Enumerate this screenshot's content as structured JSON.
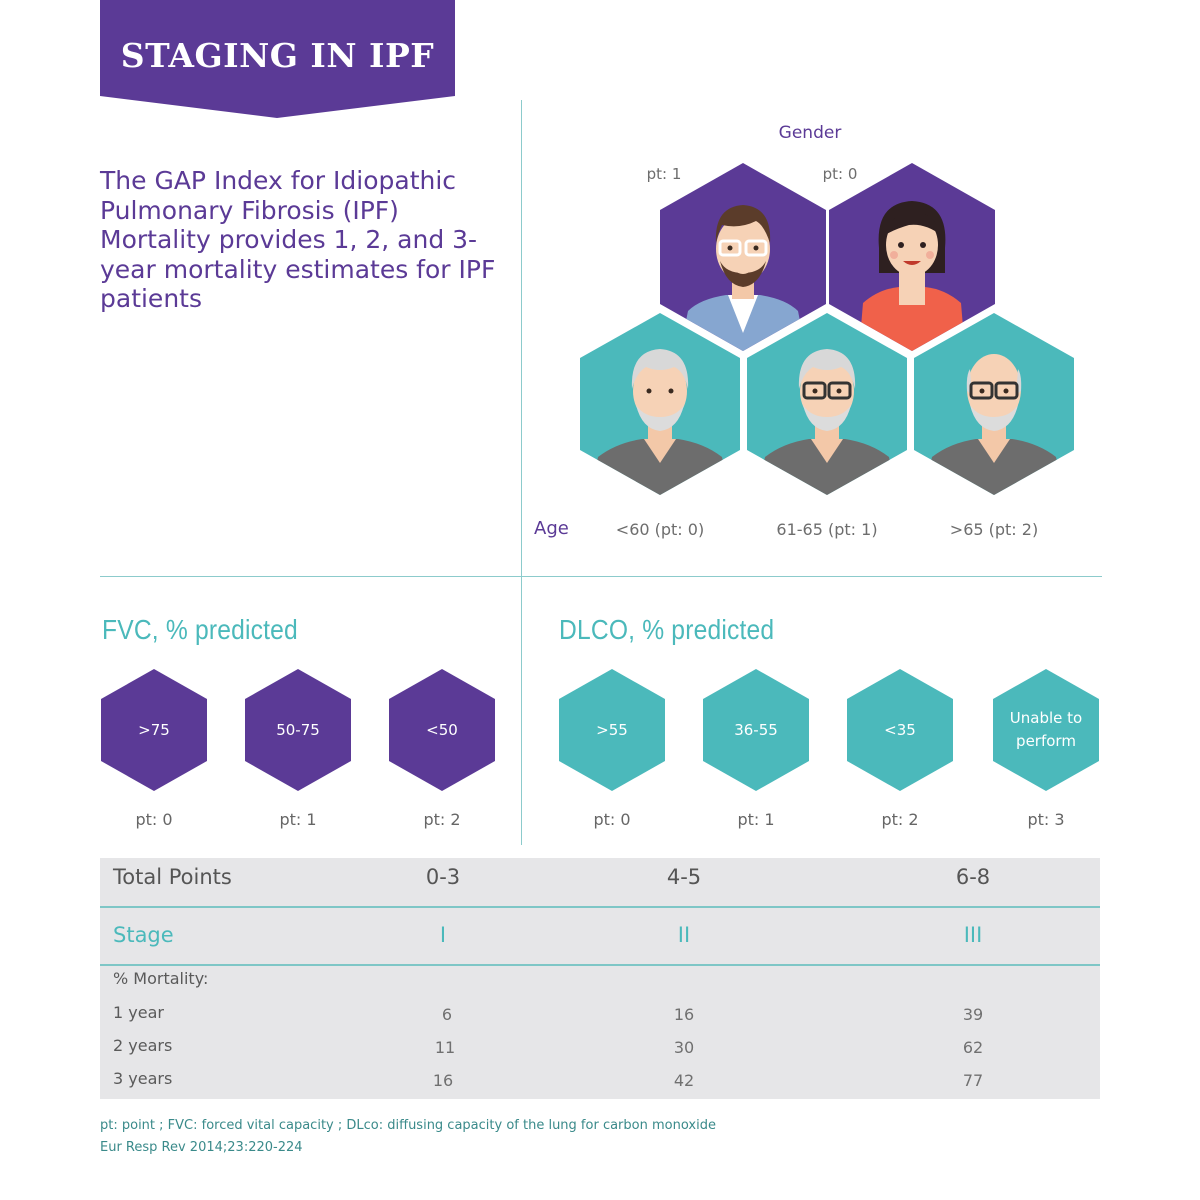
{
  "banner": {
    "title": "STAGING IN IPF"
  },
  "intro": {
    "text": "The GAP Index for Idiopathic Pulmonary Fibrosis (IPF) Mortality provides 1, 2, and 3-year mortality estimates for IPF patients"
  },
  "gender": {
    "title": "Gender",
    "items": [
      {
        "label": "pt: 1",
        "icon": "man-avatar-icon"
      },
      {
        "label": "pt: 0",
        "icon": "woman-avatar-icon"
      }
    ]
  },
  "age": {
    "title": "Age",
    "items": [
      {
        "label": "<60 (pt: 0)",
        "icon": "older-man-icon"
      },
      {
        "label": "61-65 (pt: 1)",
        "icon": "older-man-glasses-icon"
      },
      {
        "label": ">65 (pt: 2)",
        "icon": "bald-man-glasses-icon"
      }
    ]
  },
  "fvc": {
    "title": "FVC, % predicted",
    "items": [
      {
        "value": ">75",
        "pt": "pt: 0"
      },
      {
        "value": "50-75",
        "pt": "pt: 1"
      },
      {
        "value": "<50",
        "pt": "pt: 2"
      }
    ]
  },
  "dlco": {
    "title": "DLCO, % predicted",
    "items": [
      {
        "value": ">55",
        "pt": "pt: 0"
      },
      {
        "value": "36-55",
        "pt": "pt: 1"
      },
      {
        "value": "<35",
        "pt": "pt: 2"
      },
      {
        "value_line1": "Unable to",
        "value_line2": "perform",
        "pt": "pt: 3"
      }
    ]
  },
  "table": {
    "total_label": "Total Points",
    "totals": [
      "0-3",
      "4-5",
      "6-8"
    ],
    "stage_label": "Stage",
    "stages": [
      "I",
      "II",
      "III"
    ],
    "mortality_label": "% Mortality:",
    "rows": [
      {
        "label": "1 year",
        "values": [
          "6",
          "16",
          "39"
        ]
      },
      {
        "label": "2 years",
        "values": [
          "11",
          "30",
          "62"
        ]
      },
      {
        "label": "3 years",
        "values": [
          "16",
          "42",
          "77"
        ]
      }
    ]
  },
  "footer": {
    "abbreviations": "pt: point ; FVC: forced vital capacity ; DLco: diffusing capacity of the lung for carbon monoxide",
    "citation": "Eur Resp Rev 2014;23:220-224"
  },
  "colors": {
    "purple": "#5b3a96",
    "teal": "#4bb9bb",
    "line": "#8ccbcc",
    "table_bg": "#e6e6e8"
  }
}
